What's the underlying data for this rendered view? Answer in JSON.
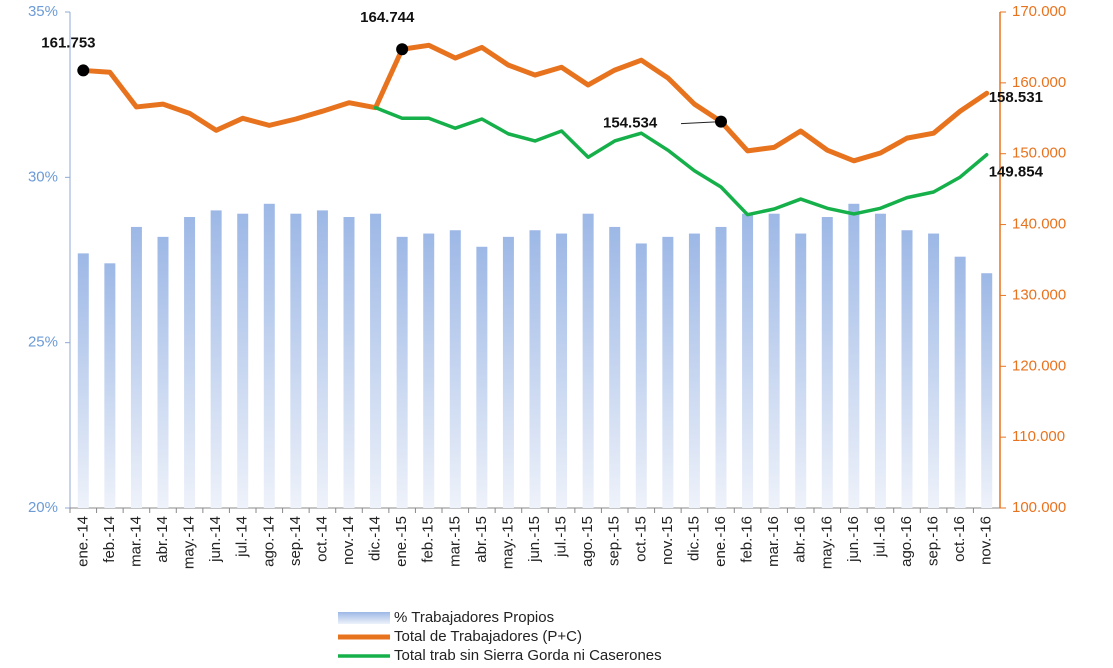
{
  "chart_data": {
    "type": "combo",
    "categories": [
      "ene.-14",
      "feb.-14",
      "mar.-14",
      "abr.-14",
      "may.-14",
      "jun.-14",
      "jul.-14",
      "ago.-14",
      "sep.-14",
      "oct.-14",
      "nov.-14",
      "dic.-14",
      "ene.-15",
      "feb.-15",
      "mar.-15",
      "abr.-15",
      "may.-15",
      "jun.-15",
      "jul.-15",
      "ago.-15",
      "sep.-15",
      "oct.-15",
      "nov.-15",
      "dic.-15",
      "ene.-16",
      "feb.-16",
      "mar.-16",
      "abr.-16",
      "may.-16",
      "jun.-16",
      "jul.-16",
      "ago.-16",
      "sep.-16",
      "oct.-16",
      "nov.-16"
    ],
    "series": [
      {
        "name": "% Trabajadores Propios",
        "type": "bar",
        "color": "#9db8e6",
        "axis": "y",
        "values": [
          27.7,
          27.4,
          28.5,
          28.2,
          28.8,
          29.0,
          28.9,
          29.2,
          28.9,
          29.0,
          28.8,
          28.9,
          28.2,
          28.3,
          28.4,
          27.9,
          28.2,
          28.4,
          28.3,
          28.9,
          28.5,
          28.0,
          28.2,
          28.3,
          28.5,
          28.9,
          28.9,
          28.3,
          28.8,
          29.2,
          28.9,
          28.4,
          28.3,
          27.6,
          27.1
        ]
      },
      {
        "name": "Total de Trabajadores (P+C)",
        "type": "line",
        "color": "#e8731e",
        "axis": "y2",
        "values": [
          161753,
          161500,
          156600,
          157000,
          155700,
          153300,
          155000,
          154000,
          154900,
          156000,
          157200,
          156500,
          164744,
          165300,
          163500,
          165000,
          162500,
          161100,
          162200,
          159700,
          161800,
          163200,
          160700,
          157000,
          154534,
          150400,
          150900,
          153200,
          150500,
          149000,
          150100,
          152200,
          152900,
          156000,
          158531
        ],
        "value_labels": [
          "161.753",
          null,
          null,
          null,
          null,
          null,
          null,
          null,
          null,
          null,
          null,
          null,
          "164.744",
          null,
          null,
          null,
          null,
          null,
          null,
          null,
          null,
          null,
          null,
          null,
          "154.534",
          null,
          null,
          null,
          null,
          null,
          null,
          null,
          null,
          null,
          "158.531"
        ]
      },
      {
        "name": "Total trab sin Sierra Gorda ni Caserones",
        "type": "line",
        "color": "#16b04a",
        "axis": "y2",
        "values": [
          null,
          null,
          null,
          null,
          null,
          null,
          null,
          null,
          null,
          null,
          null,
          156500,
          155000,
          155000,
          153600,
          154900,
          152800,
          151800,
          153200,
          149500,
          151800,
          152900,
          150500,
          147600,
          145300,
          141400,
          142200,
          143600,
          142300,
          141500,
          142300,
          143800,
          144600,
          146700,
          149854
        ],
        "value_labels": [
          null,
          null,
          null,
          null,
          null,
          null,
          null,
          null,
          null,
          null,
          null,
          null,
          null,
          null,
          null,
          null,
          null,
          null,
          null,
          null,
          null,
          null,
          null,
          null,
          null,
          null,
          null,
          null,
          null,
          null,
          null,
          null,
          null,
          null,
          "149.854"
        ]
      }
    ],
    "ylim": [
      20,
      35
    ],
    "yticks": [
      {
        "value": 20,
        "label": "20%"
      },
      {
        "value": 25,
        "label": "25%"
      },
      {
        "value": 30,
        "label": "30%"
      },
      {
        "value": 35,
        "label": "35%"
      }
    ],
    "y2lim": [
      100000,
      170000
    ],
    "y2ticks": [
      {
        "value": 100000,
        "label": "100.000"
      },
      {
        "value": 110000,
        "label": "110.000"
      },
      {
        "value": 120000,
        "label": "120.000"
      },
      {
        "value": 130000,
        "label": "130.000"
      },
      {
        "value": 140000,
        "label": "140.000"
      },
      {
        "value": 150000,
        "label": "150.000"
      },
      {
        "value": 160000,
        "label": "160.000"
      },
      {
        "value": 170000,
        "label": "170.000"
      }
    ],
    "legend": "bottom"
  }
}
